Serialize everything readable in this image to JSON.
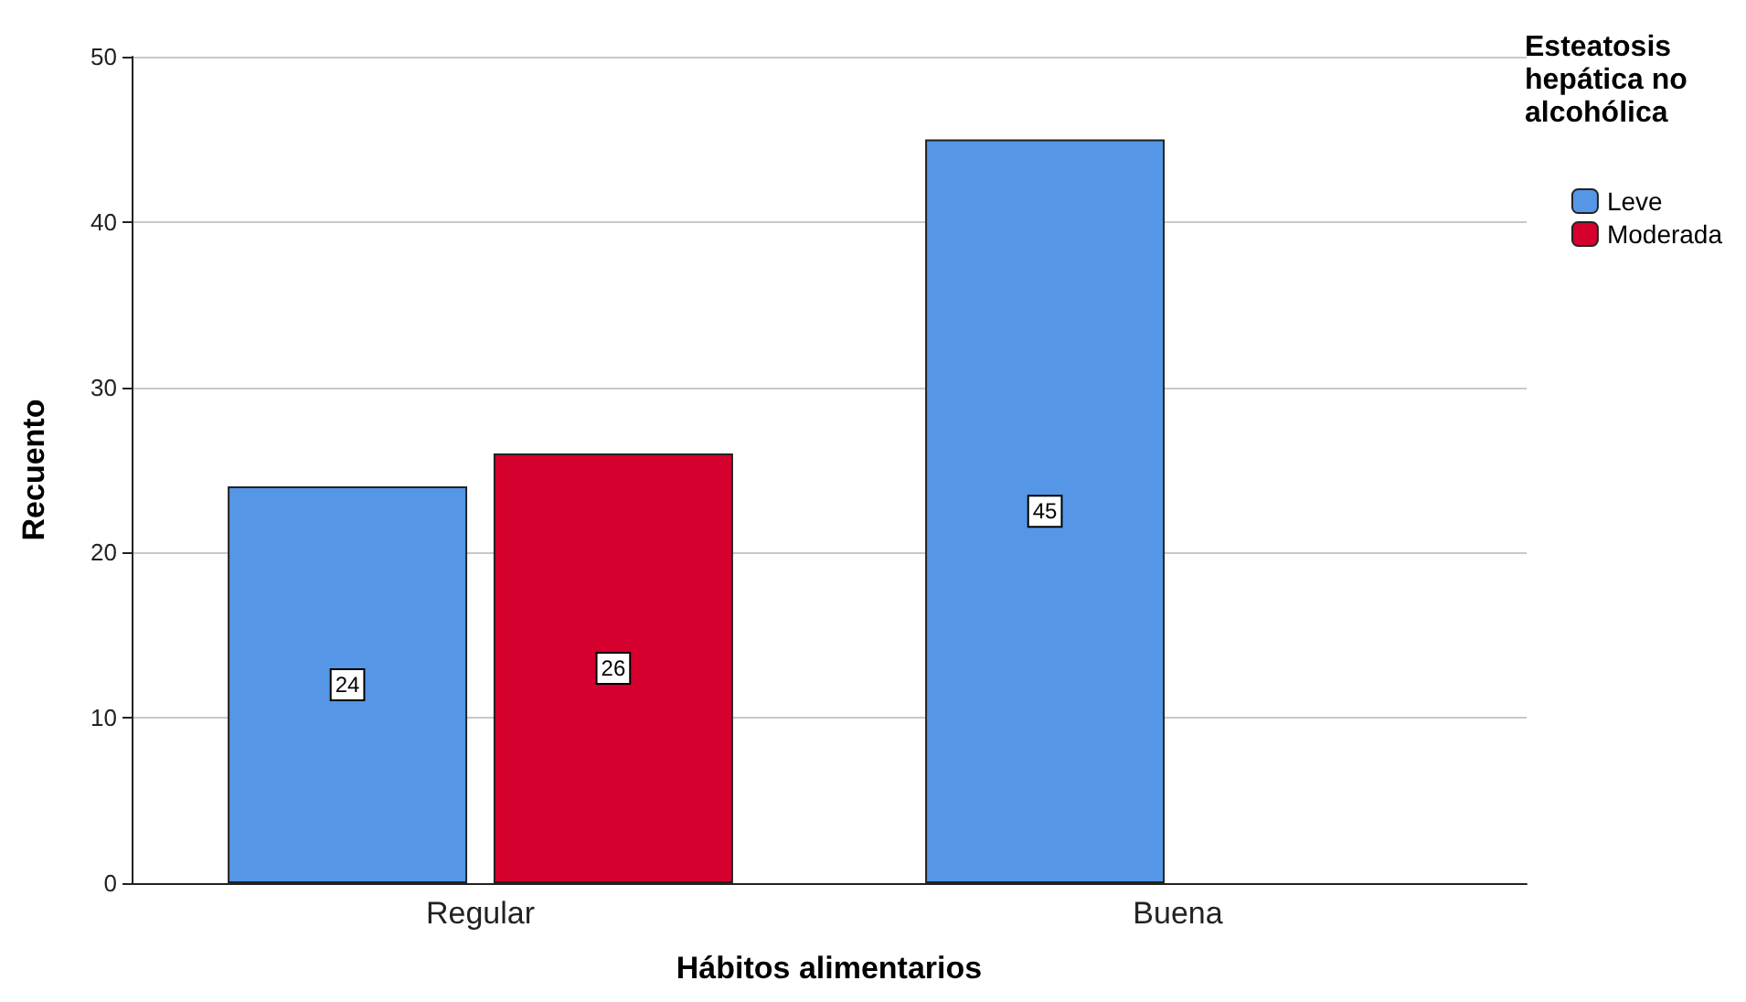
{
  "chart_data": {
    "type": "bar",
    "xlabel": "Hábitos alimentarios",
    "ylabel": "Recuento",
    "legend_title": "Esteatosis hepática no alcohólica",
    "categories": [
      "Regular",
      "Buena"
    ],
    "series": [
      {
        "name": "Leve",
        "color": "#5596e6",
        "values": [
          24,
          45
        ]
      },
      {
        "name": "Moderada",
        "color": "#d6002f",
        "values": [
          26,
          null
        ]
      }
    ],
    "ylim": [
      0,
      50
    ],
    "yticks": [
      0,
      10,
      20,
      30,
      40,
      50
    ],
    "grid": "y",
    "legend": "top right",
    "data_labels": true
  }
}
